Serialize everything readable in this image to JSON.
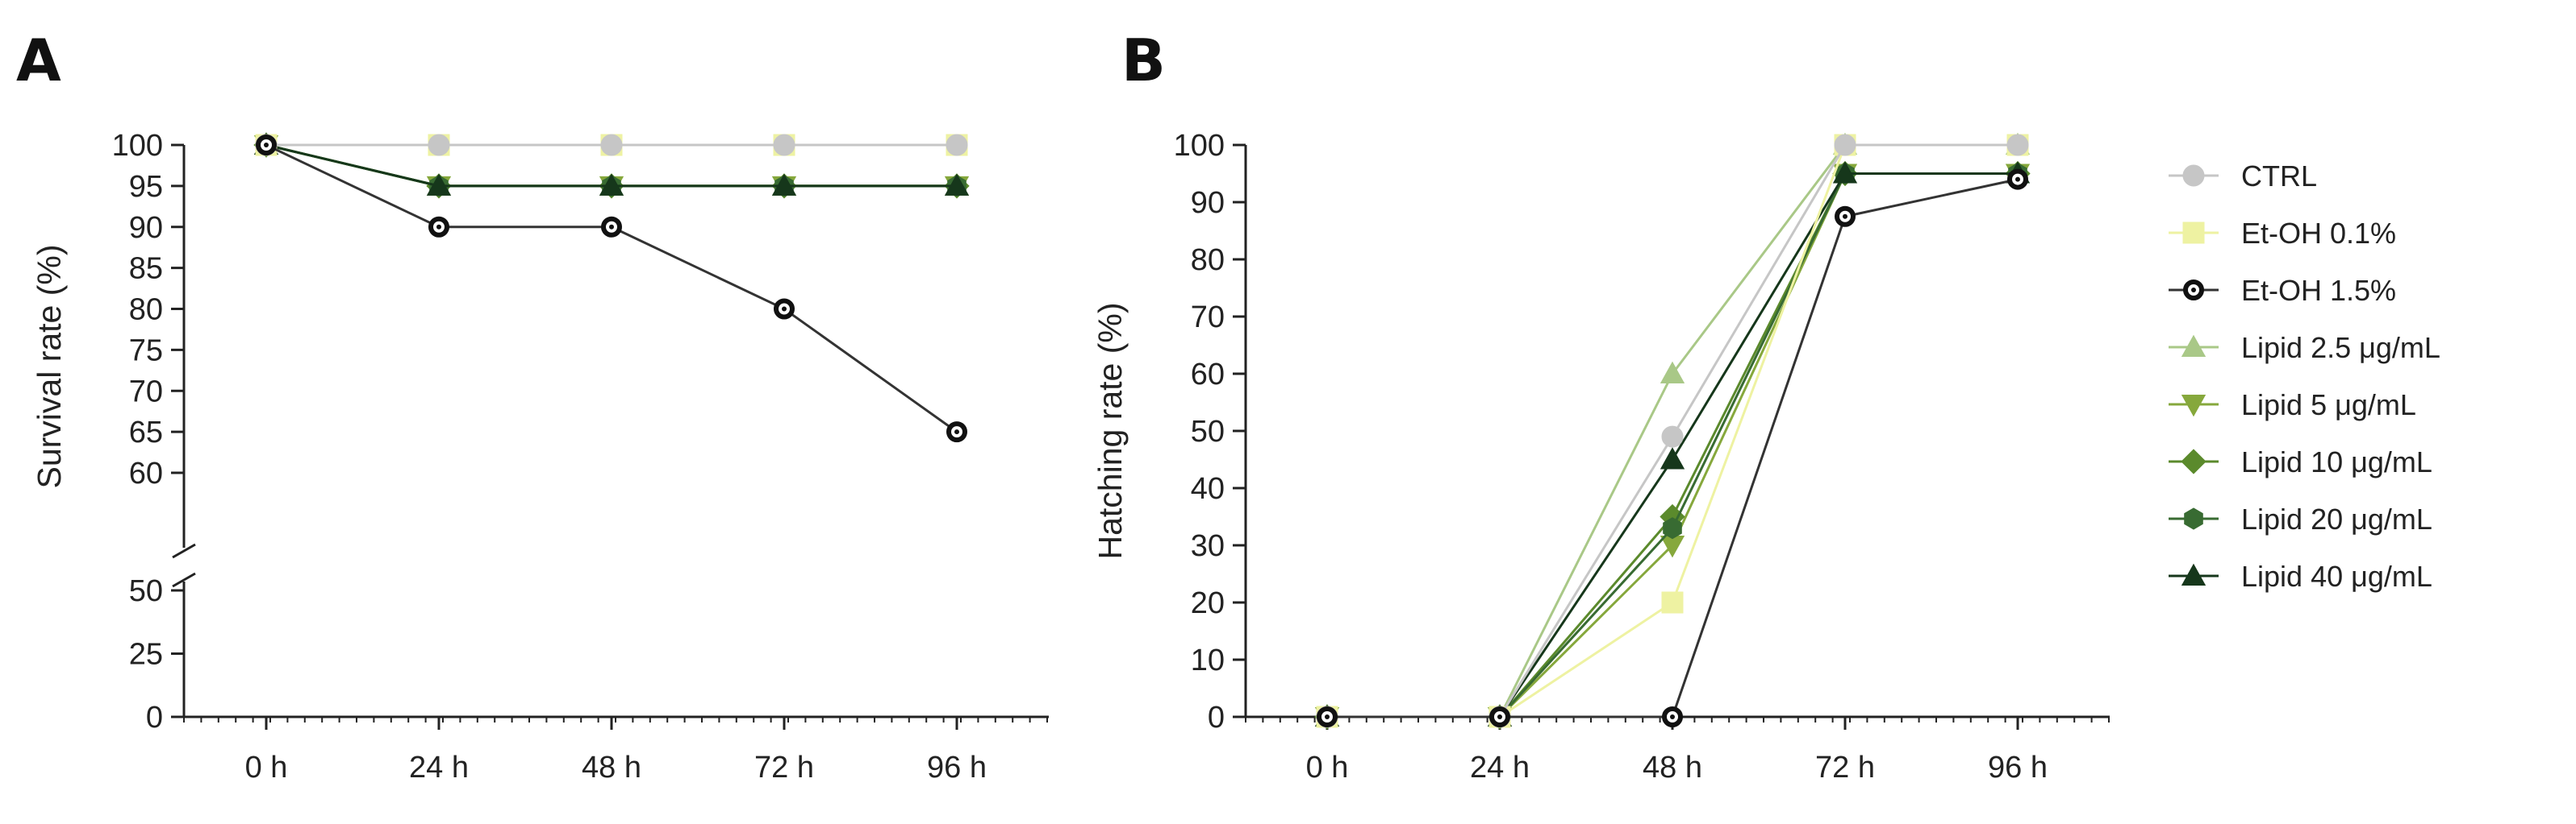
{
  "chart_data": [
    {
      "panel": "A",
      "type": "line",
      "title": "",
      "xlabel": "",
      "ylabel": "Survival rate (%)",
      "categories": [
        "0 h",
        "24 h",
        "48 h",
        "72 h",
        "96 h"
      ],
      "y_axis_break": [
        50,
        60
      ],
      "y_ticks_lower": [
        0,
        25,
        50
      ],
      "y_ticks_upper": [
        60,
        65,
        70,
        75,
        80,
        85,
        90,
        95,
        100
      ],
      "series": [
        {
          "name": "CTRL",
          "values": [
            100,
            100,
            100,
            100,
            100
          ]
        },
        {
          "name": "Et-OH 0.1%",
          "values": [
            100,
            100,
            100,
            100,
            100
          ]
        },
        {
          "name": "Et-OH 1.5%",
          "values": [
            100,
            90,
            90,
            80,
            65
          ]
        },
        {
          "name": "Lipid 2.5 μg/mL",
          "values": [
            100,
            95,
            95,
            95,
            95
          ]
        },
        {
          "name": "Lipid 5 μg/mL",
          "values": [
            100,
            95,
            95,
            95,
            95
          ]
        },
        {
          "name": "Lipid 10 μg/mL",
          "values": [
            100,
            95,
            95,
            95,
            95
          ]
        },
        {
          "name": "Lipid 20 μg/mL",
          "values": [
            100,
            95,
            95,
            95,
            95
          ]
        },
        {
          "name": "Lipid 40 μg/mL",
          "values": [
            100,
            95,
            95,
            95,
            95
          ]
        }
      ]
    },
    {
      "panel": "B",
      "type": "line",
      "title": "",
      "xlabel": "",
      "ylabel": "Hatching rate (%)",
      "categories": [
        "0 h",
        "24 h",
        "48 h",
        "72 h",
        "96 h"
      ],
      "ylim": [
        0,
        100
      ],
      "y_ticks": [
        0,
        10,
        20,
        30,
        40,
        50,
        60,
        70,
        80,
        90,
        100
      ],
      "series": [
        {
          "name": "CTRL",
          "values": [
            0,
            0,
            49,
            100,
            100
          ]
        },
        {
          "name": "Et-OH 0.1%",
          "values": [
            0,
            0,
            20,
            100,
            100
          ]
        },
        {
          "name": "Et-OH 1.5%",
          "values": [
            0,
            0,
            0,
            87.5,
            94
          ]
        },
        {
          "name": "Lipid 2.5 μg/mL",
          "values": [
            0,
            0,
            60,
            100,
            100
          ]
        },
        {
          "name": "Lipid 5 μg/mL",
          "values": [
            0,
            0,
            30,
            95,
            95
          ]
        },
        {
          "name": "Lipid 10 μg/mL",
          "values": [
            0,
            0,
            35,
            95,
            95
          ]
        },
        {
          "name": "Lipid 20 μg/mL",
          "values": [
            0,
            0,
            33,
            95,
            95
          ]
        },
        {
          "name": "Lipid 40 μg/mL",
          "values": [
            0,
            0,
            45,
            95,
            95
          ]
        }
      ]
    }
  ],
  "panels": {
    "a_label": "A",
    "b_label": "B"
  },
  "legend": {
    "placement": "right",
    "items": [
      {
        "label": "CTRL",
        "marker": "circle",
        "color": "#c6c6c6",
        "filled": true
      },
      {
        "label": "Et-OH 0.1%",
        "marker": "square",
        "color": "#eef2a2",
        "filled": true
      },
      {
        "label": "Et-OH 1.5%",
        "marker": "circle",
        "color": "#111111",
        "filled": false
      },
      {
        "label": "Lipid 2.5 μg/mL",
        "marker": "triangle-up",
        "color": "#a9c887",
        "filled": true
      },
      {
        "label": "Lipid 5 μg/mL",
        "marker": "triangle-down",
        "color": "#86a83c",
        "filled": true
      },
      {
        "label": "Lipid 10 μg/mL",
        "marker": "diamond",
        "color": "#5b8a2c",
        "filled": true
      },
      {
        "label": "Lipid 20 μg/mL",
        "marker": "hexagon",
        "color": "#386b32",
        "filled": true
      },
      {
        "label": "Lipid 40 μg/mL",
        "marker": "triangle-up",
        "color": "#16371b",
        "filled": true
      }
    ]
  }
}
